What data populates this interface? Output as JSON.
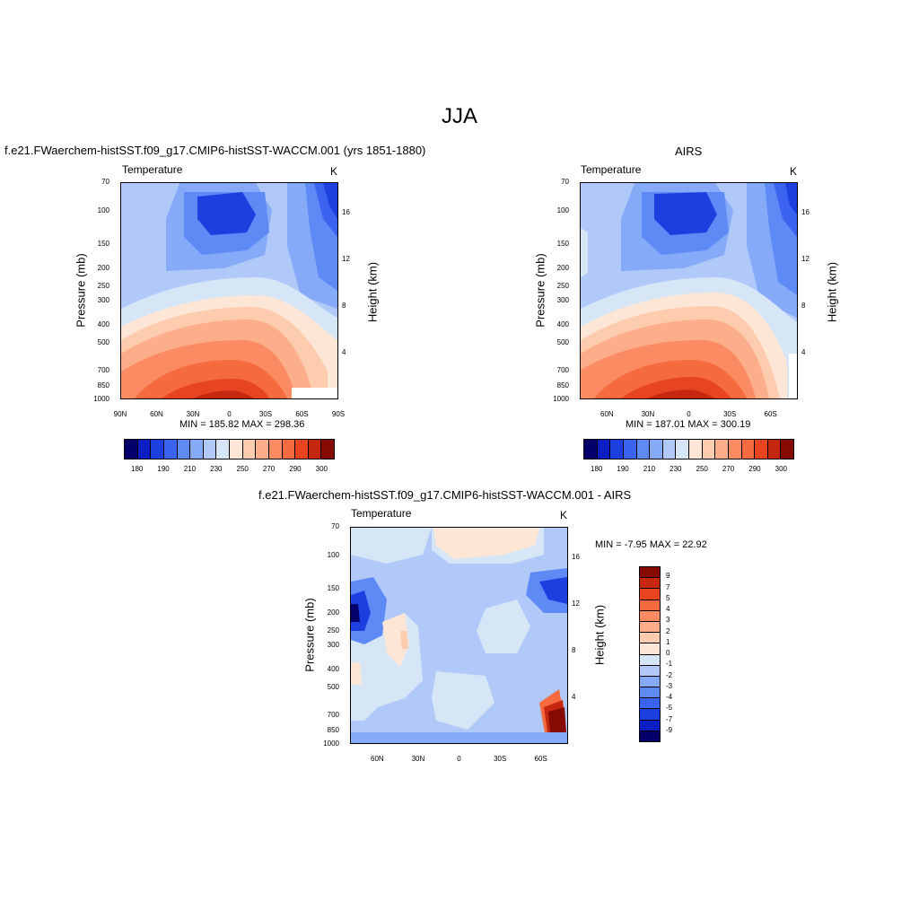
{
  "figure": {
    "title": "JJA"
  },
  "colors": {
    "abs_scale": [
      "#03006b",
      "#0c1fc2",
      "#1d3fe0",
      "#3a64ef",
      "#5e8af5",
      "#85aaf7",
      "#b0c9f8",
      "#d7e6f6",
      "#fde6d5",
      "#fdcbae",
      "#fcae8a",
      "#fb8b63",
      "#f56a3e",
      "#e74421",
      "#c52710",
      "#860b05"
    ],
    "diff_scale": [
      "#03006b",
      "#0c1fc2",
      "#1d3fe0",
      "#3a64ef",
      "#5e8af5",
      "#85aaf7",
      "#b0c9f8",
      "#d7e6f6",
      "#fde6d5",
      "#fdcbae",
      "#fcae8a",
      "#fb8b63",
      "#f56a3e",
      "#e74421",
      "#c52710",
      "#860b05"
    ]
  },
  "chart_data": [
    {
      "type": "heatmap",
      "title": "f.e21.FWaerchem-histSST.f09_g17.CMIP6-histSST-WACCM.001 (yrs 1851-1880)",
      "left_label": "Temperature",
      "right_label": "K",
      "ylabel": "Pressure (mb)",
      "ylabel_right": "Height (km)",
      "x_ticks": [
        "90N",
        "60N",
        "30N",
        "0",
        "30S",
        "60S",
        "90S"
      ],
      "y_ticks": [
        "70",
        "100",
        "150",
        "200",
        "250",
        "300",
        "400",
        "500",
        "700",
        "850",
        "1000"
      ],
      "y_right_ticks": [
        "16",
        "12",
        "8",
        "4"
      ],
      "min_max": "MIN = 185.82  MAX = 298.36",
      "colorbar_labels": [
        "180",
        "190",
        "210",
        "230",
        "250",
        "270",
        "290",
        "300"
      ]
    },
    {
      "type": "heatmap",
      "title": "AIRS",
      "left_label": "Temperature",
      "right_label": "K",
      "ylabel": "Pressure (mb)",
      "ylabel_right": "Height (km)",
      "x_ticks": [
        "60N",
        "30N",
        "0",
        "30S",
        "60S"
      ],
      "y_ticks": [
        "70",
        "100",
        "150",
        "200",
        "250",
        "300",
        "400",
        "500",
        "700",
        "850",
        "1000"
      ],
      "y_right_ticks": [
        "16",
        "12",
        "8",
        "4"
      ],
      "min_max": "MIN = 187.01  MAX = 300.19",
      "colorbar_labels": [
        "180",
        "190",
        "210",
        "230",
        "250",
        "270",
        "290",
        "300"
      ]
    },
    {
      "type": "heatmap",
      "title": "f.e21.FWaerchem-histSST.f09_g17.CMIP6-histSST-WACCM.001 - AIRS",
      "left_label": "Temperature",
      "right_label": "K",
      "ylabel": "Pressure (mb)",
      "ylabel_right": "Height (km)",
      "x_ticks": [
        "60N",
        "30N",
        "0",
        "30S",
        "60S"
      ],
      "y_ticks": [
        "70",
        "100",
        "150",
        "200",
        "250",
        "300",
        "400",
        "500",
        "700",
        "850",
        "1000"
      ],
      "y_right_ticks": [
        "16",
        "12",
        "8",
        "4"
      ],
      "min_max": "MIN =  -7.95  MAX =  22.92",
      "colorbar_labels": [
        "9",
        "7",
        "5",
        "4",
        "3",
        "2",
        "1",
        "0",
        "-1",
        "-2",
        "-3",
        "-4",
        "-5",
        "-7",
        "-9"
      ]
    }
  ]
}
